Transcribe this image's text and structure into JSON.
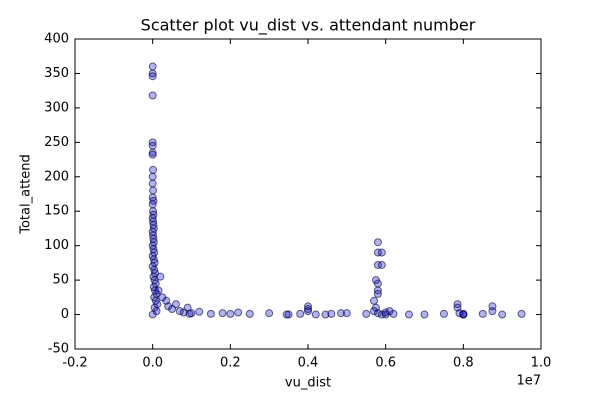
{
  "chart_data": {
    "type": "scatter",
    "title": "Scatter plot vu_dist vs. attendant number",
    "x_label": "vu_dist",
    "y_label": "Total_attend",
    "x_offset_label": "1e7",
    "color": "#0000cc",
    "xlim": [
      -0.2,
      1.0
    ],
    "ylim": [
      -50,
      400
    ],
    "xticks": [
      -0.2,
      {
        "value": 0,
        "label": "0.0"
      },
      0.2,
      0.4,
      0.6,
      0.8,
      {
        "value": 1,
        "label": "1.0"
      }
    ],
    "yticks": [
      -50,
      0,
      50,
      100,
      150,
      200,
      250,
      300,
      350,
      400
    ],
    "x": [
      0.0,
      0.0,
      0.0,
      0.0,
      0.0,
      0.0,
      0.0,
      0.0,
      0.001,
      0.0,
      0.0,
      0.001,
      0.0,
      0.002,
      0.0,
      0.001,
      0.002,
      0.0,
      0.001,
      0.002,
      0.003,
      0.0,
      0.001,
      0.002,
      0.003,
      0.0,
      0.002,
      0.004,
      0.0,
      0.003,
      0.005,
      0.0,
      0.004,
      0.006,
      0.002,
      0.005,
      0.008,
      0.003,
      0.006,
      0.01,
      0.004,
      0.008,
      0.012,
      0.005,
      0.01,
      0.0,
      0.02,
      0.015,
      0.025,
      0.035,
      0.04,
      0.05,
      0.06,
      0.07,
      0.08,
      0.1,
      0.12,
      0.15,
      0.18,
      0.2,
      0.22,
      0.25,
      0.3,
      0.35,
      0.38,
      0.42,
      0.46,
      0.5,
      0.55,
      0.6,
      0.62,
      0.7,
      0.75,
      0.8,
      0.85,
      0.9,
      0.95,
      0.09,
      0.095,
      0.345,
      0.4,
      0.4,
      0.4,
      0.445,
      0.485,
      0.57,
      0.575,
      0.58,
      0.58,
      0.59,
      0.59,
      0.58,
      0.58,
      0.58,
      0.58,
      0.575,
      0.57,
      0.58,
      0.59,
      0.6,
      0.61,
      0.66,
      0.785,
      0.785,
      0.79,
      0.8,
      0.8,
      0.875,
      0.875
    ],
    "values": [
      360,
      350,
      346,
      318,
      250,
      245,
      235,
      232,
      210,
      200,
      190,
      180,
      170,
      165,
      160,
      150,
      145,
      140,
      135,
      130,
      125,
      120,
      115,
      110,
      105,
      100,
      95,
      90,
      85,
      80,
      75,
      70,
      65,
      60,
      55,
      50,
      45,
      40,
      35,
      30,
      25,
      20,
      15,
      10,
      5,
      0,
      55,
      35,
      25,
      20,
      12,
      8,
      15,
      5,
      3,
      2,
      4,
      1,
      2,
      1,
      3,
      1,
      2,
      0,
      1,
      0,
      1,
      2,
      1,
      0,
      1,
      0,
      1,
      0,
      1,
      0,
      1,
      10,
      1,
      0,
      12,
      8,
      5,
      0,
      2,
      20,
      50,
      105,
      90,
      90,
      72,
      72,
      45,
      35,
      30,
      10,
      5,
      2,
      0,
      3,
      5,
      0,
      15,
      10,
      2,
      0,
      1,
      12,
      5
    ]
  }
}
